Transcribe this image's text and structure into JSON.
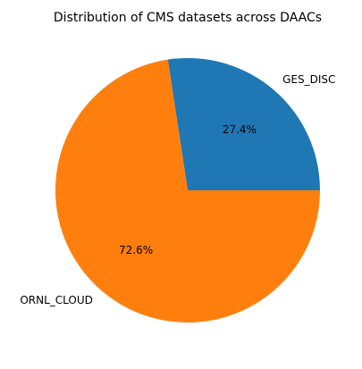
{
  "chart_data": {
    "type": "pie",
    "title": "Distribution of CMS datasets across DAACs",
    "slices": [
      {
        "label": "GES_DISC",
        "value": 27.4,
        "pct_label": "27.4%",
        "color": "#1f77b4"
      },
      {
        "label": "ORNL_CLOUD",
        "value": 72.6,
        "pct_label": "72.6%",
        "color": "#ff7f0e"
      }
    ],
    "start_angle_deg": 0,
    "direction": "counterclockwise",
    "legend": "none"
  }
}
